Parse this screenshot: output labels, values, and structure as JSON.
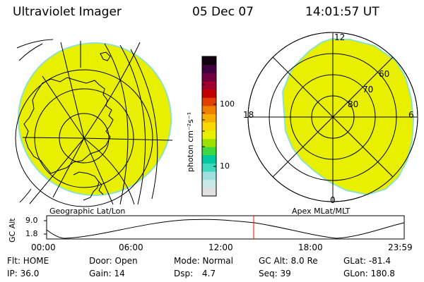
{
  "header": {
    "instrument": "Ultraviolet Imager",
    "date": "05 Dec 07",
    "time": "14:01:57 UT"
  },
  "colorbar": {
    "unit_label": "photon cm⁻²s⁻¹",
    "ticks": [
      "100",
      "10"
    ],
    "colors": [
      "#e0e0e0",
      "#c8e8e8",
      "#a0e0e0",
      "#40d8c0",
      "#00c8a0",
      "#40d840",
      "#a0e000",
      "#e8f000",
      "#f8d800",
      "#f8b000",
      "#f08000",
      "#e04000",
      "#c00000",
      "#a00030",
      "#700040",
      "#400040",
      "#100010"
    ]
  },
  "left_panel": {
    "caption": "Geographic Lat/Lon",
    "fill_color": "#e8f000"
  },
  "right_panel": {
    "caption": "Apex MLat/MLT",
    "mlt_labels": [
      "12",
      "18",
      "6",
      "0"
    ],
    "mlat_labels": [
      "60",
      "70",
      "80"
    ],
    "fill_color": "#e8f000"
  },
  "altitude_plot": {
    "ylabel": "GC Alt",
    "ytick_high": "9.0",
    "ytick_low": "1.8",
    "xticks": [
      "00:00",
      "06:00",
      "12:00",
      "18:00",
      "23:59"
    ],
    "current_time_marker_color": "#ff0000"
  },
  "status": {
    "row1": {
      "flt": "Flt: HOME",
      "door": "Door: Open",
      "mode": "Mode: Normal",
      "gc_alt": "GC Alt: 8.0 Re",
      "glat": "GLat: -81.4"
    },
    "row2": {
      "ip": "IP: 36.0",
      "gain": "Gain: 14",
      "dsp_label": "Dsp:",
      "dsp_value": "4.7",
      "seq": "Seq: 39",
      "glon": "GLon: 180.8"
    }
  }
}
